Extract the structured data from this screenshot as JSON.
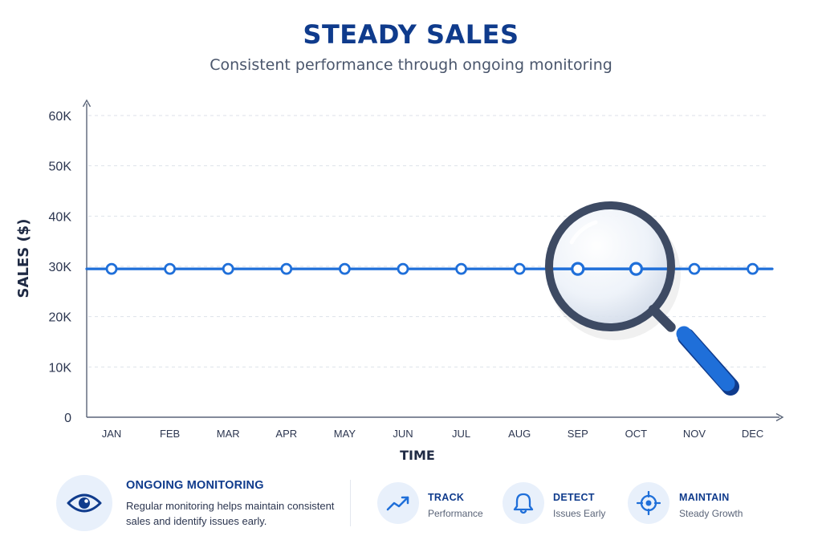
{
  "header": {
    "title": "STEADY SALES",
    "subtitle": "Consistent performance through ongoing monitoring"
  },
  "chart_data": {
    "type": "line",
    "title": "STEADY SALES",
    "subtitle": "Consistent performance through ongoing monitoring",
    "xlabel": "TIME",
    "ylabel": "SALES ($)",
    "categories": [
      "JAN",
      "FEB",
      "MAR",
      "APR",
      "MAY",
      "JUN",
      "JUL",
      "AUG",
      "SEP",
      "OCT",
      "NOV",
      "DEC"
    ],
    "values": [
      29500,
      29500,
      29500,
      29500,
      29500,
      29500,
      29500,
      29500,
      29500,
      29500,
      29500,
      29500
    ],
    "ylim": [
      0,
      60000
    ],
    "yticks": [
      0,
      10000,
      20000,
      30000,
      40000,
      50000,
      60000
    ],
    "ytick_labels": [
      "0",
      "10K",
      "20K",
      "30K",
      "40K",
      "50K",
      "60K"
    ],
    "grid": "horizontal dashed",
    "legend": "none",
    "line_color": "#1f6fd9",
    "annotation": "magnifying glass over SEP–OCT"
  },
  "footer": {
    "monitoring": {
      "icon": "eye-icon",
      "title": "ONGOING MONITORING",
      "description": "Regular monitoring helps maintain consistent sales and identify issues early."
    },
    "features": [
      {
        "icon": "trend-icon",
        "title": "TRACK",
        "subtitle": "Performance"
      },
      {
        "icon": "bell-icon",
        "title": "DETECT",
        "subtitle": "Issues Early"
      },
      {
        "icon": "target-icon",
        "title": "MAINTAIN",
        "subtitle": "Steady Growth"
      }
    ]
  },
  "colors": {
    "accent": "#1f6fd9",
    "title": "#0f3b8c",
    "axis": "#5a6478",
    "icon_bg": "#e8f0fb",
    "magnifier_frame": "#3d4a63"
  }
}
